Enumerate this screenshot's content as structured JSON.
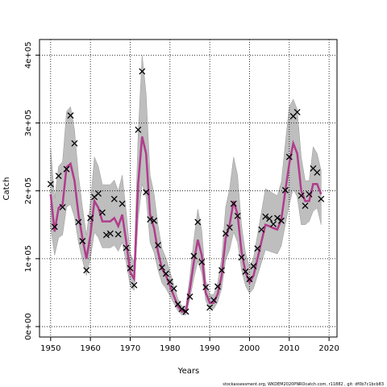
{
  "chart_data": {
    "type": "line",
    "xlabel": "Years",
    "ylabel": "Catch",
    "footnote": "stockassessment.org, WKDEM2020PNROcatch.com, r11882 , git: df0b7c1bcb83",
    "x": [
      1950,
      1951,
      1952,
      1953,
      1954,
      1955,
      1956,
      1957,
      1958,
      1959,
      1960,
      1961,
      1962,
      1963,
      1964,
      1965,
      1966,
      1967,
      1968,
      1969,
      1970,
      1971,
      1972,
      1973,
      1974,
      1975,
      1976,
      1977,
      1978,
      1979,
      1980,
      1981,
      1982,
      1983,
      1984,
      1985,
      1986,
      1987,
      1988,
      1989,
      1990,
      1991,
      1992,
      1993,
      1994,
      1995,
      1996,
      1997,
      1998,
      1999,
      2000,
      2001,
      2002,
      2003,
      2004,
      2005,
      2006,
      2007,
      2008,
      2009,
      2010,
      2011,
      2012,
      2013,
      2014,
      2015,
      2016,
      2017,
      2018
    ],
    "observed": {
      "color": "#000000",
      "values": [
        210000,
        147000,
        222000,
        176000,
        232000,
        311000,
        270000,
        154000,
        126000,
        83000,
        160000,
        191000,
        196000,
        168000,
        135000,
        137000,
        188000,
        136000,
        181000,
        116000,
        86000,
        61000,
        290000,
        376000,
        198000,
        158000,
        156000,
        120000,
        87000,
        78000,
        66000,
        56000,
        33000,
        26000,
        22000,
        44000,
        104000,
        154000,
        95000,
        58000,
        28000,
        39000,
        59000,
        83000,
        137000,
        146000,
        181000,
        163000,
        102000,
        81000,
        70000,
        89000,
        115000,
        143000,
        162000,
        159000,
        151000,
        160000,
        156000,
        201000,
        250000,
        310000,
        316000,
        193000,
        178000,
        195000,
        233000,
        227000,
        188000
      ]
    },
    "fit": {
      "color": "#b03c8c",
      "values": [
        195000,
        140000,
        175000,
        180000,
        235000,
        240000,
        215000,
        165000,
        130000,
        100000,
        135000,
        185000,
        175000,
        155000,
        155000,
        155000,
        160000,
        148000,
        165000,
        125000,
        80000,
        70000,
        210000,
        280000,
        255000,
        165000,
        145000,
        110000,
        85000,
        75000,
        60000,
        45000,
        30000,
        22000,
        22000,
        55000,
        95000,
        128000,
        105000,
        50000,
        35000,
        35000,
        48000,
        75000,
        130000,
        150000,
        185000,
        165000,
        110000,
        80000,
        65000,
        75000,
        100000,
        125000,
        150000,
        148000,
        145000,
        143000,
        158000,
        200000,
        240000,
        270000,
        255000,
        200000,
        185000,
        185000,
        210000,
        210000,
        195000
      ]
    },
    "band": {
      "color": "#bebebe",
      "upper": [
        263000,
        189000,
        236000,
        243000,
        317000,
        324000,
        290000,
        223000,
        176000,
        135000,
        182000,
        250000,
        236000,
        209000,
        209000,
        209000,
        216000,
        200000,
        223000,
        169000,
        108000,
        95000,
        284000,
        400000,
        344000,
        223000,
        196000,
        149000,
        115000,
        101000,
        81000,
        61000,
        41000,
        30000,
        30000,
        74000,
        128000,
        173000,
        142000,
        68000,
        47000,
        47000,
        65000,
        101000,
        176000,
        203000,
        250000,
        223000,
        149000,
        108000,
        88000,
        101000,
        135000,
        169000,
        203000,
        200000,
        196000,
        193000,
        213000,
        270000,
        324000,
        335000,
        320000,
        250000,
        215000,
        215000,
        265000,
        255000,
        230000
      ],
      "lower": [
        146000,
        105000,
        131000,
        135000,
        176000,
        180000,
        161000,
        124000,
        98000,
        75000,
        101000,
        139000,
        131000,
        116000,
        116000,
        116000,
        120000,
        111000,
        124000,
        94000,
        60000,
        53000,
        158000,
        210000,
        191000,
        124000,
        109000,
        83000,
        64000,
        56000,
        45000,
        34000,
        23000,
        17000,
        17000,
        41000,
        71000,
        96000,
        79000,
        38000,
        26000,
        26000,
        36000,
        56000,
        98000,
        113000,
        139000,
        124000,
        83000,
        60000,
        49000,
        56000,
        75000,
        94000,
        113000,
        111000,
        109000,
        107000,
        119000,
        150000,
        180000,
        203000,
        191000,
        150000,
        150000,
        155000,
        170000,
        175000,
        150000
      ]
    },
    "xlim": [
      1947.2,
      2022
    ],
    "ylim": [
      -15400,
      423000
    ],
    "xticks": [
      1950,
      1960,
      1970,
      1980,
      1990,
      2000,
      2010,
      2020
    ],
    "yticks": [
      {
        "value": 0,
        "label": "0e+00"
      },
      {
        "value": 100000,
        "label": "1e+05"
      },
      {
        "value": 200000,
        "label": "2e+05"
      },
      {
        "value": 300000,
        "label": "3e+05"
      },
      {
        "value": 400000,
        "label": "4e+05"
      }
    ],
    "grid": true
  }
}
